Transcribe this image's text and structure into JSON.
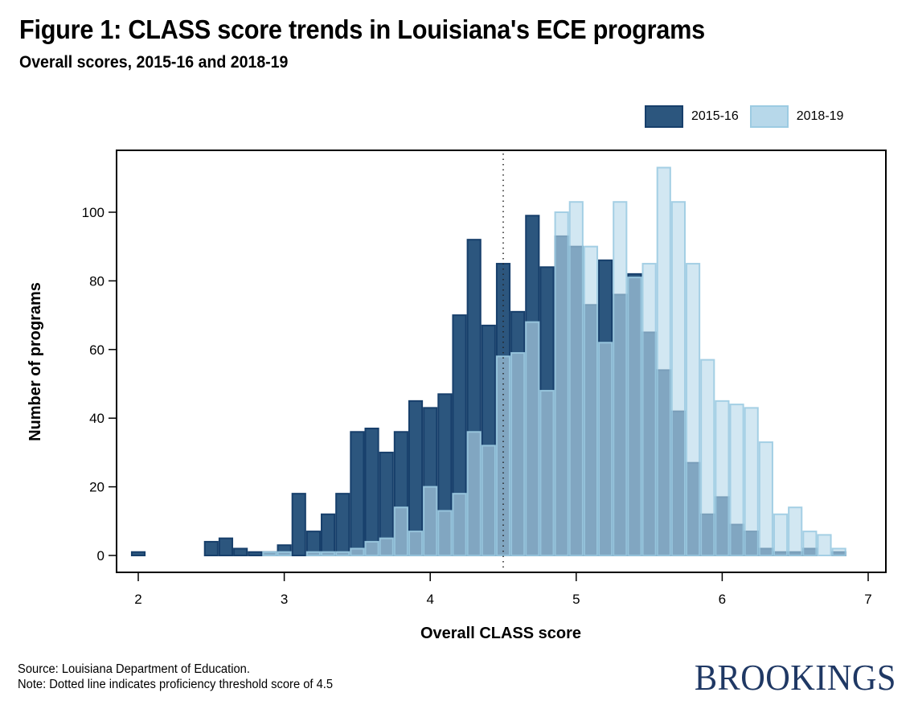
{
  "header": {
    "title": "Figure 1: CLASS score trends in Louisiana's ECE programs",
    "subtitle": "Overall scores, 2015-16 and 2018-19"
  },
  "footer": {
    "source": "Source: Louisiana Department of Education.",
    "note": "Note: Dotted line indicates proficiency threshold score of 4.5",
    "logo": "BROOKINGS"
  },
  "colors": {
    "series_2015_fill": "#2c567e",
    "series_2015_stroke": "#173f6b",
    "series_2018_fill": "#b7d8ea",
    "series_2018_stroke": "#9ccbe2",
    "overlap_fill": "#6a9fc0",
    "logo": "#1f3864"
  },
  "chart_data": {
    "type": "bar",
    "subtype": "overlaid-histogram",
    "title": "Figure 1: CLASS score trends in Louisiana's ECE programs",
    "subtitle": "Overall scores, 2015-16 and 2018-19",
    "xlabel": "Overall CLASS score",
    "ylabel": "Number of programs",
    "xlim": [
      1.85,
      7.05
    ],
    "ylim": [
      -5,
      117
    ],
    "xticks": [
      2,
      3,
      4,
      5,
      6,
      7
    ],
    "yticks": [
      0,
      20,
      40,
      60,
      80,
      100
    ],
    "bin_width": 0.1,
    "grid": false,
    "legend_position": "top-right",
    "reference_line": {
      "x": 4.5,
      "style": "dotted",
      "label": "Proficiency threshold score of 4.5"
    },
    "series": [
      {
        "name": "2015-16",
        "bins": [
          {
            "start": 1.95,
            "count": 1
          },
          {
            "start": 2.45,
            "count": 4
          },
          {
            "start": 2.55,
            "count": 5
          },
          {
            "start": 2.65,
            "count": 2
          },
          {
            "start": 2.75,
            "count": 1
          },
          {
            "start": 2.85,
            "count": 1
          },
          {
            "start": 2.95,
            "count": 3
          },
          {
            "start": 3.05,
            "count": 18
          },
          {
            "start": 3.15,
            "count": 7
          },
          {
            "start": 3.25,
            "count": 12
          },
          {
            "start": 3.35,
            "count": 18
          },
          {
            "start": 3.45,
            "count": 36
          },
          {
            "start": 3.55,
            "count": 37
          },
          {
            "start": 3.65,
            "count": 30
          },
          {
            "start": 3.75,
            "count": 36
          },
          {
            "start": 3.85,
            "count": 45
          },
          {
            "start": 3.95,
            "count": 43
          },
          {
            "start": 4.05,
            "count": 47
          },
          {
            "start": 4.15,
            "count": 70
          },
          {
            "start": 4.25,
            "count": 92
          },
          {
            "start": 4.35,
            "count": 67
          },
          {
            "start": 4.45,
            "count": 85
          },
          {
            "start": 4.55,
            "count": 71
          },
          {
            "start": 4.65,
            "count": 99
          },
          {
            "start": 4.75,
            "count": 84
          },
          {
            "start": 4.85,
            "count": 93
          },
          {
            "start": 4.95,
            "count": 90
          },
          {
            "start": 5.05,
            "count": 73
          },
          {
            "start": 5.15,
            "count": 86
          },
          {
            "start": 5.25,
            "count": 76
          },
          {
            "start": 5.35,
            "count": 82
          },
          {
            "start": 5.45,
            "count": 65
          },
          {
            "start": 5.55,
            "count": 54
          },
          {
            "start": 5.65,
            "count": 42
          },
          {
            "start": 5.75,
            "count": 27
          },
          {
            "start": 5.85,
            "count": 12
          },
          {
            "start": 5.95,
            "count": 17
          },
          {
            "start": 6.05,
            "count": 9
          },
          {
            "start": 6.15,
            "count": 7
          },
          {
            "start": 6.25,
            "count": 2
          },
          {
            "start": 6.35,
            "count": 1
          },
          {
            "start": 6.45,
            "count": 1
          },
          {
            "start": 6.55,
            "count": 2
          },
          {
            "start": 6.75,
            "count": 1
          }
        ]
      },
      {
        "name": "2018-19",
        "bins": [
          {
            "start": 2.85,
            "count": 1
          },
          {
            "start": 2.95,
            "count": 1
          },
          {
            "start": 3.15,
            "count": 1
          },
          {
            "start": 3.25,
            "count": 1
          },
          {
            "start": 3.35,
            "count": 1
          },
          {
            "start": 3.45,
            "count": 2
          },
          {
            "start": 3.55,
            "count": 4
          },
          {
            "start": 3.65,
            "count": 5
          },
          {
            "start": 3.75,
            "count": 14
          },
          {
            "start": 3.85,
            "count": 7
          },
          {
            "start": 3.95,
            "count": 20
          },
          {
            "start": 4.05,
            "count": 13
          },
          {
            "start": 4.15,
            "count": 18
          },
          {
            "start": 4.25,
            "count": 36
          },
          {
            "start": 4.35,
            "count": 32
          },
          {
            "start": 4.45,
            "count": 58
          },
          {
            "start": 4.55,
            "count": 59
          },
          {
            "start": 4.65,
            "count": 68
          },
          {
            "start": 4.75,
            "count": 48
          },
          {
            "start": 4.85,
            "count": 100
          },
          {
            "start": 4.95,
            "count": 103
          },
          {
            "start": 5.05,
            "count": 90
          },
          {
            "start": 5.15,
            "count": 62
          },
          {
            "start": 5.25,
            "count": 103
          },
          {
            "start": 5.35,
            "count": 81
          },
          {
            "start": 5.45,
            "count": 85
          },
          {
            "start": 5.55,
            "count": 113
          },
          {
            "start": 5.65,
            "count": 103
          },
          {
            "start": 5.75,
            "count": 85
          },
          {
            "start": 5.85,
            "count": 57
          },
          {
            "start": 5.95,
            "count": 45
          },
          {
            "start": 6.05,
            "count": 44
          },
          {
            "start": 6.15,
            "count": 43
          },
          {
            "start": 6.25,
            "count": 33
          },
          {
            "start": 6.35,
            "count": 12
          },
          {
            "start": 6.45,
            "count": 14
          },
          {
            "start": 6.55,
            "count": 7
          },
          {
            "start": 6.65,
            "count": 6
          },
          {
            "start": 6.75,
            "count": 2
          }
        ]
      }
    ]
  }
}
